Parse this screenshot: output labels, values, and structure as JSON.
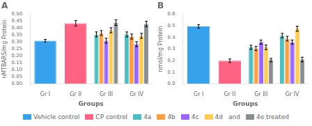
{
  "chart_data": [
    {
      "type": "bar",
      "title": "A",
      "xlabel": "Groups",
      "ylabel": "nMTBARS/mg Protein",
      "categories": [
        "Gr I",
        "Gr II",
        "Gr III",
        "Gr IV"
      ],
      "ylim": [
        0,
        0.5
      ],
      "yticks": [
        {
          "value": 0,
          "label": "0.00"
        },
        {
          "value": 0.05,
          "label": "0.05"
        },
        {
          "value": 0.1,
          "label": "0.10"
        },
        {
          "value": 0.15,
          "label": "0.15"
        },
        {
          "value": 0.2,
          "label": "0.20"
        },
        {
          "value": 0.25,
          "label": "0.25"
        },
        {
          "value": 0.3,
          "label": "0.30"
        },
        {
          "value": 0.35,
          "label": "0.35"
        },
        {
          "value": 0.4,
          "label": "0.40"
        },
        {
          "value": 0.45,
          "label": "0.45"
        },
        {
          "value": 0.5,
          "label": "0.50"
        }
      ],
      "grid": false,
      "legend": "bottom",
      "annotations": [
        "and"
      ],
      "series": [
        {
          "name": "Vehicle control",
          "color": "#36a2eb",
          "values": [
            0.31,
            null,
            null,
            null
          ],
          "errors": [
            0.01,
            null,
            null,
            null
          ]
        },
        {
          "name": "CP control",
          "color": "#ff6384",
          "values": [
            null,
            0.435,
            null,
            null
          ],
          "errors": [
            null,
            0.02,
            null,
            null
          ]
        },
        {
          "name": "4a",
          "color": "#4bc0c0",
          "values": [
            null,
            null,
            0.355,
            0.355
          ],
          "errors": [
            null,
            null,
            0.018,
            0.018
          ]
        },
        {
          "name": "4b",
          "color": "#ff9f40",
          "values": [
            null,
            null,
            0.365,
            0.34
          ],
          "errors": [
            null,
            null,
            0.018,
            0.018
          ]
        },
        {
          "name": "4c",
          "color": "#9966ff",
          "values": [
            null,
            null,
            0.31,
            0.285
          ],
          "errors": [
            null,
            null,
            0.018,
            0.018
          ]
        },
        {
          "name": "4d",
          "color": "#ffcd56",
          "values": [
            null,
            null,
            0.385,
            0.345
          ],
          "errors": [
            null,
            null,
            0.018,
            0.018
          ]
        },
        {
          "name": "4e treated",
          "color": "#8a8d91",
          "values": [
            null,
            null,
            0.44,
            0.43
          ],
          "errors": [
            null,
            null,
            0.02,
            0.02
          ]
        }
      ]
    },
    {
      "type": "bar",
      "title": "B",
      "xlabel": "Groups",
      "ylabel": "nmol/mg Protein",
      "categories": [
        "Gr I",
        "Gr II",
        "Gr III",
        "Gr IV"
      ],
      "ylim": [
        0,
        0.6
      ],
      "yticks": [
        {
          "value": 0,
          "label": "0.0"
        },
        {
          "value": 0.1,
          "label": "0.1"
        },
        {
          "value": 0.2,
          "label": "0.2"
        },
        {
          "value": 0.3,
          "label": "0.3"
        },
        {
          "value": 0.4,
          "label": "0.4"
        },
        {
          "value": 0.5,
          "label": "0.5"
        },
        {
          "value": 0.6,
          "label": "0.6"
        }
      ],
      "grid": false,
      "series": [
        {
          "name": "Vehicle control",
          "color": "#36a2eb",
          "values": [
            0.495,
            null,
            null,
            null
          ],
          "errors": [
            0.015,
            null,
            null,
            null
          ]
        },
        {
          "name": "CP control",
          "color": "#ff6384",
          "values": [
            null,
            0.2,
            null,
            null
          ],
          "errors": [
            null,
            0.015,
            null,
            null
          ]
        },
        {
          "name": "4a",
          "color": "#4bc0c0",
          "values": [
            null,
            null,
            0.315,
            0.415
          ],
          "errors": [
            null,
            null,
            0.018,
            0.02
          ]
        },
        {
          "name": "4b",
          "color": "#ff9f40",
          "values": [
            null,
            null,
            0.305,
            0.39
          ],
          "errors": [
            null,
            null,
            0.018,
            0.02
          ]
        },
        {
          "name": "4c",
          "color": "#9966ff",
          "values": [
            null,
            null,
            0.36,
            0.36
          ],
          "errors": [
            null,
            null,
            0.018,
            0.018
          ]
        },
        {
          "name": "4d",
          "color": "#ffcd56",
          "values": [
            null,
            null,
            0.315,
            0.475
          ],
          "errors": [
            null,
            null,
            0.02,
            0.022
          ]
        },
        {
          "name": "4e treated",
          "color": "#8a8d91",
          "values": [
            null,
            null,
            0.205,
            0.21
          ],
          "errors": [
            null,
            null,
            0.015,
            0.02
          ]
        }
      ]
    }
  ]
}
